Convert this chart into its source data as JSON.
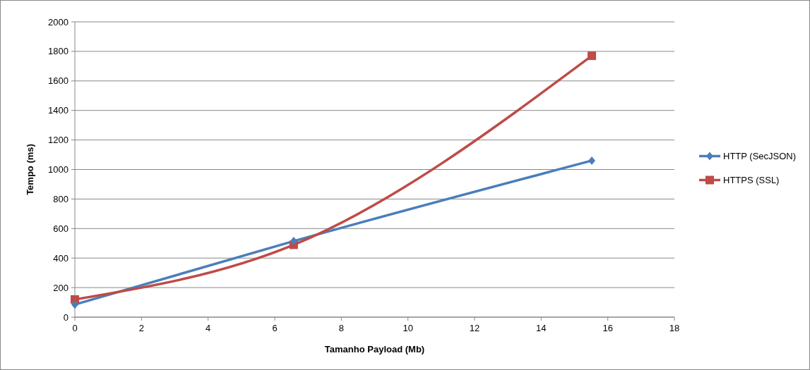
{
  "chart_data": {
    "type": "line",
    "xlabel": "Tamanho Payload (Mb)",
    "ylabel": "Tempo (ms)",
    "xlim": [
      0,
      18
    ],
    "xticks": [
      0,
      2,
      4,
      6,
      8,
      10,
      12,
      14,
      16,
      18
    ],
    "ylim": [
      0,
      2000
    ],
    "yticks": [
      0,
      200,
      400,
      600,
      800,
      1000,
      1200,
      1400,
      1600,
      1800,
      2000
    ],
    "grid": "y",
    "legend": "right",
    "line_style": "solid",
    "series": [
      {
        "name": "HTTP (SecJSON)",
        "color": "#4a7ebb",
        "marker": "diamond",
        "x": [
          0,
          6.57,
          15.52
        ],
        "values": [
          85,
          515,
          1060
        ]
      },
      {
        "name": "HTTPS (SSL)",
        "color": "#be4b48",
        "marker": "square",
        "x": [
          0,
          6.57,
          15.52
        ],
        "values": [
          120,
          490,
          1770
        ]
      }
    ]
  }
}
